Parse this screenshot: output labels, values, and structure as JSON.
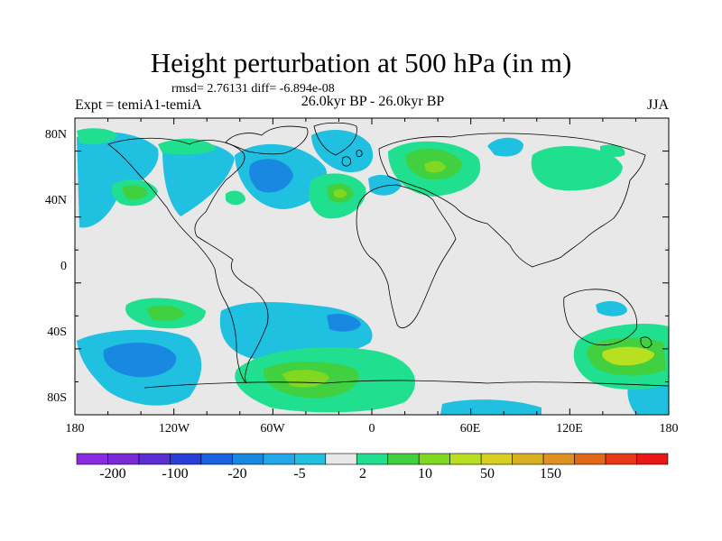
{
  "title": "Height perturbation at 500 hPa (in m)",
  "stats_line": "rmsd= 2.76131 diff= -6.894e-08",
  "experiment_label": "Expt = temiA1-temiA",
  "period_label": "26.0kyr BP - 26.0kyr BP",
  "season_label": "JJA",
  "lat_labels": [
    "80N",
    "40N",
    "0",
    "40S",
    "80S"
  ],
  "lon_labels": [
    "180",
    "120W",
    "60W",
    "0",
    "60E",
    "120E",
    "180"
  ],
  "colorbar": {
    "colors": [
      "#8a2be2",
      "#7a2bd8",
      "#5a2ed0",
      "#2a3fd8",
      "#1a60e0",
      "#1888e0",
      "#20a8e8",
      "#20c0e0",
      "#e8e8e8",
      "#20e090",
      "#40d040",
      "#80d820",
      "#b8e020",
      "#d8d020",
      "#d8b020",
      "#e09020",
      "#e06818",
      "#e83818",
      "#e81818"
    ],
    "labels": [
      "-200",
      "-100",
      "-20",
      "-5",
      "2",
      "10",
      "50",
      "150"
    ]
  },
  "map_colors": {
    "background": "#e8e8e8",
    "coast": "#000000"
  }
}
